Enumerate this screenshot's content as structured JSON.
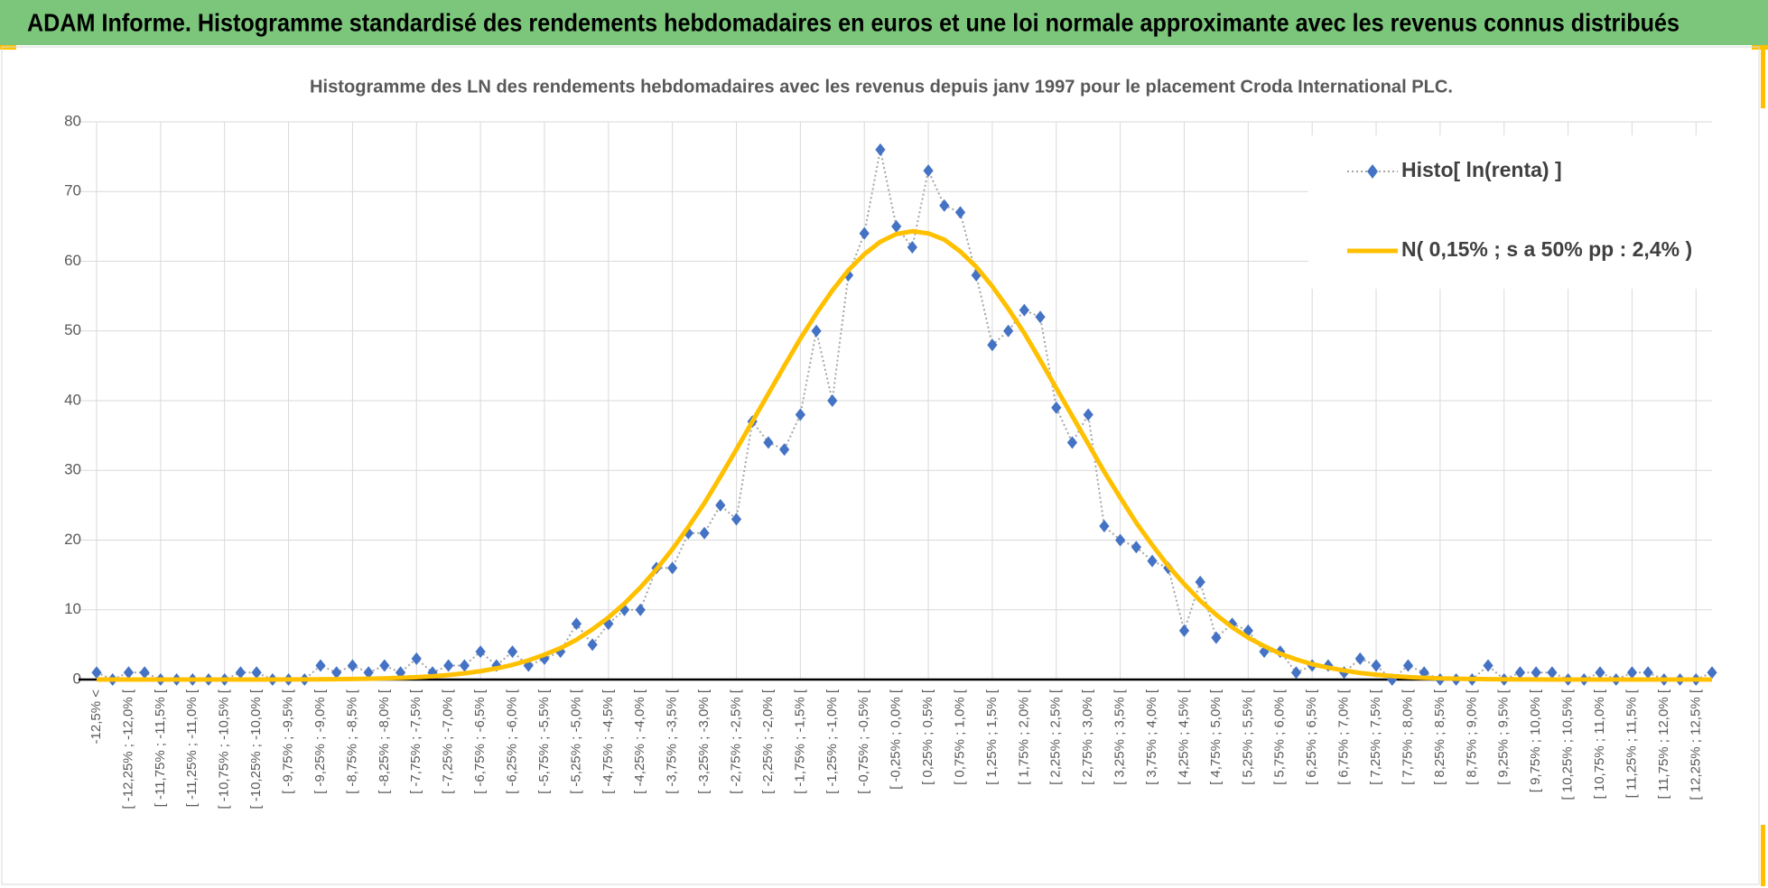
{
  "chart_data": {
    "type": "line",
    "header": "ADAM Informe. Histogramme standardisé des rendements hebdomadaires en euros et une loi normale approximante avec les revenus connus distribués",
    "title": "Histogramme des LN des rendements hebdomadaires avec les revenus depuis janv 1997 pour le placement Croda International PLC.",
    "categories": [
      "-12,5% <",
      null,
      "[ -12,25% ; -12,0% [",
      null,
      "[ -11,75% ; -11,5% [",
      null,
      "[ -11,25% ; -11,0% [",
      null,
      "[ -10,75% ; -10,5% [",
      null,
      "[ -10,25% ; -10,0% [",
      null,
      "[ -9,75% ; -9,5% [",
      null,
      "[ -9,25% ; -9,0% [",
      null,
      "[ -8,75% ; -8,5% [",
      null,
      "[ -8,25% ; -8,0% [",
      null,
      "[ -7,75% ; -7,5% [",
      null,
      "[ -7,25% ; -7,0% [",
      null,
      "[ -6,75% ; -6,5% [",
      null,
      "[ -6,25% ; -6,0% [",
      null,
      "[ -5,75% ; -5,5% [",
      null,
      "[ -5,25% ; -5,0% [",
      null,
      "[ -4,75% ; -4,5% [",
      null,
      "[ -4,25% ; -4,0% [",
      null,
      "[ -3,75% ; -3,5% [",
      null,
      "[ -3,25% ; -3,0% [",
      null,
      "[ -2,75% ; -2,5% [",
      null,
      "[ -2,25% ; -2,0% [",
      null,
      "[ -1,75% ; -1,5% [",
      null,
      "[ -1,25% ; -1,0% [",
      null,
      "[ -0,75% ; -0,5% [",
      null,
      "[ -0,25% ; 0,0% [",
      null,
      "[ 0,25% ; 0,5% [",
      null,
      "[ 0,75% ; 1,0% [",
      null,
      "[ 1,25% ; 1,5% [",
      null,
      "[ 1,75% ; 2,0% [",
      null,
      "[ 2,25% ; 2,5% [",
      null,
      "[ 2,75% ; 3,0% [",
      null,
      "[ 3,25% ; 3,5% [",
      null,
      "[ 3,75% ; 4,0% [",
      null,
      "[ 4,25% ; 4,5% [",
      null,
      "[ 4,75% ; 5,0% [",
      null,
      "[ 5,25% ; 5,5% [",
      null,
      "[ 5,75% ; 6,0% [",
      null,
      "[ 6,25% ; 6,5% [",
      null,
      "[ 6,75% ; 7,0% [",
      null,
      "[ 7,25% ; 7,5% [",
      null,
      "[ 7,75% ; 8,0% [",
      null,
      "[ 8,25% ; 8,5% [",
      null,
      "[ 8,75% ; 9,0% [",
      null,
      "[ 9,25% ; 9,5% [",
      null,
      "[ 9,75% ; 10,0% [",
      null,
      "[ 10,25% ; 10,5% [",
      null,
      "[ 10,75% ; 11,0% [",
      null,
      "[ 11,25% ; 11,5% [",
      null,
      "[ 11,75% ; 12,0% [",
      null,
      "[ 12,25% ; 12,5% [",
      null
    ],
    "series": [
      {
        "name": "Histo[ ln(renta) ]",
        "color": "#4472c4",
        "line_color": "#a5a5a5",
        "values": [
          1,
          0,
          1,
          1,
          0,
          0,
          0,
          0,
          0,
          1,
          1,
          0,
          0,
          0,
          2,
          1,
          2,
          1,
          2,
          1,
          3,
          1,
          2,
          2,
          4,
          2,
          4,
          2,
          3,
          4,
          8,
          5,
          8,
          10,
          10,
          16,
          16,
          21,
          21,
          25,
          23,
          37,
          34,
          33,
          38,
          50,
          40,
          58,
          64,
          76,
          65,
          62,
          73,
          68,
          67,
          58,
          48,
          50,
          53,
          52,
          39,
          34,
          38,
          22,
          20,
          19,
          17,
          16,
          7,
          14,
          6,
          8,
          7,
          4,
          4,
          1,
          2,
          2,
          1,
          3,
          2,
          0,
          2,
          1,
          0,
          0,
          0,
          2,
          0,
          1,
          1,
          1,
          0,
          0,
          1,
          0,
          1,
          1,
          0,
          0,
          0,
          1
        ]
      },
      {
        "name": "N( 0,15% ; s a 50% pp : 2,4% )",
        "color": "#ffc000",
        "values": [
          0,
          0,
          0,
          0,
          0,
          0,
          0,
          0,
          0,
          0,
          0,
          0,
          0.01,
          0.02,
          0.03,
          0.05,
          0.08,
          0.11,
          0.17,
          0.24,
          0.34,
          0.47,
          0.65,
          0.89,
          1.2,
          1.6,
          2.1,
          2.75,
          3.56,
          4.5,
          5.7,
          7.2,
          8.9,
          10.9,
          13.2,
          15.8,
          18.7,
          21.9,
          25.3,
          29.1,
          33.0,
          37.0,
          41.0,
          45.0,
          48.9,
          52.5,
          55.8,
          58.7,
          61.0,
          62.8,
          63.9,
          64.3,
          64.0,
          63.1,
          61.4,
          59.2,
          56.4,
          53.2,
          49.7,
          45.8,
          41.8,
          37.8,
          33.8,
          29.8,
          26.1,
          22.5,
          19.3,
          16.3,
          13.7,
          11.3,
          9.3,
          7.5,
          6.0,
          4.8,
          3.7,
          2.9,
          2.2,
          1.7,
          1.3,
          0.94,
          0.69,
          0.5,
          0.36,
          0.25,
          0.17,
          0.12,
          0.08,
          0.05,
          0.03,
          0.02,
          0.01,
          0,
          0,
          0,
          0,
          0,
          0,
          0,
          0,
          0,
          0,
          0
        ]
      }
    ],
    "ylim": [
      0,
      80
    ],
    "yticks": [
      0,
      10,
      20,
      30,
      40,
      50,
      60,
      70,
      80
    ],
    "grid": true,
    "legend": "top-right"
  }
}
